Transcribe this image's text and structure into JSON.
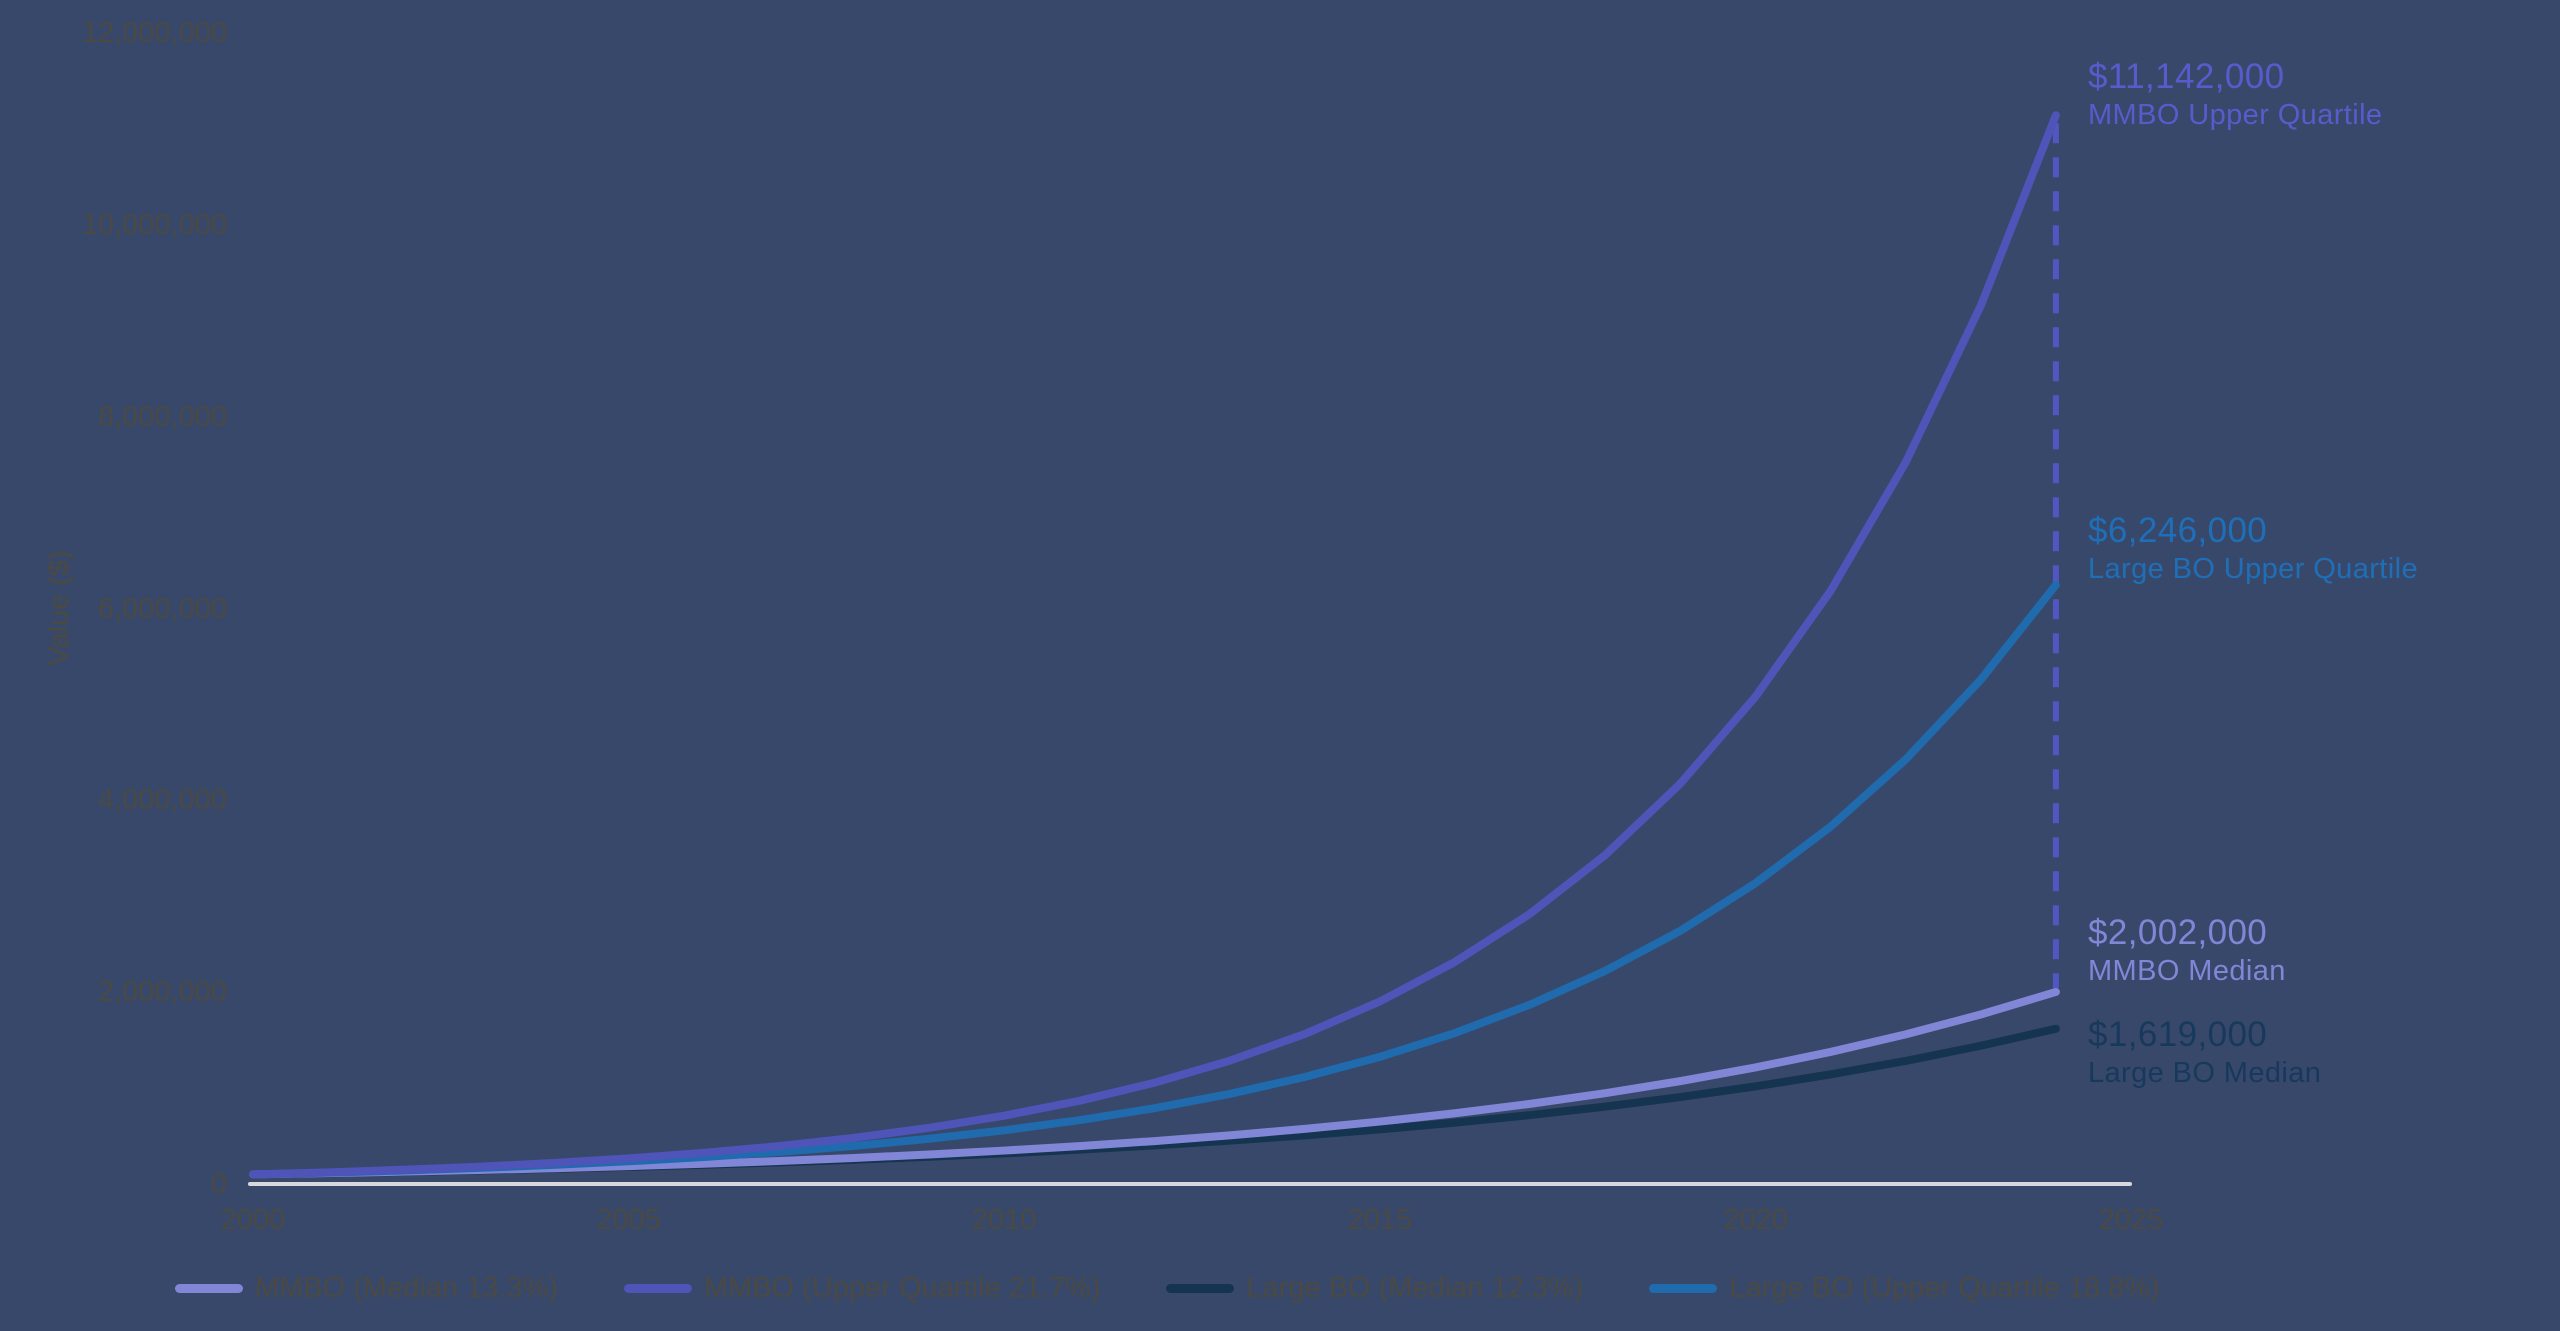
{
  "background": "#38486A",
  "axis_color": "#D8D8DC",
  "text_color": "#4A4A43",
  "chart_data": {
    "type": "line",
    "title": "",
    "xlabel": "",
    "ylabel": "Value ($)",
    "grid": false,
    "legend_position": "bottom",
    "xlim": [
      2000,
      2025
    ],
    "ylim": [
      0,
      12000000
    ],
    "xtick_labels": [
      "2000",
      "2005",
      "2010",
      "2015",
      "2020",
      "2025"
    ],
    "xtick_years": [
      2000,
      2005,
      2010,
      2015,
      2020,
      2025
    ],
    "ytick_labels": [
      "12,000,000",
      "10,000,000",
      "8,000,000",
      "6,000,000",
      "4,000,000",
      "2,000,000",
      "0"
    ],
    "ytick_values": [
      12000000,
      10000000,
      8000000,
      6000000,
      4000000,
      2000000,
      0
    ],
    "x": [
      2000,
      2001,
      2002,
      2003,
      2004,
      2005,
      2006,
      2007,
      2008,
      2009,
      2010,
      2011,
      2012,
      2013,
      2014,
      2015,
      2016,
      2017,
      2018,
      2019,
      2020,
      2021,
      2022,
      2023,
      2024
    ],
    "series": [
      {
        "name": "MMBO (Median 13.3%)",
        "color": "#8286D6",
        "growth_rate_pct": 13.3,
        "values": [
          100000,
          113300,
          128369,
          145442,
          164786,
          186703,
          211535,
          239669,
          271545,
          307660,
          348579,
          394940,
          447467,
          506980,
          574408,
          650804,
          737361,
          835430,
          946542,
          1072432,
          1215066,
          1376670,
          1559767,
          1767216,
          2002256
        ]
      },
      {
        "name": "MMBO (Upper Quartile 21.7%)",
        "color": "#4E54B8",
        "growth_rate_pct": 21.7,
        "values": [
          100000,
          121700,
          148109,
          180249,
          219363,
          266965,
          324896,
          395398,
          481199,
          585619,
          712698,
          867354,
          1055570,
          1284629,
          1563394,
          1902650,
          2315525,
          2817994,
          3429499,
          4173700,
          5079393,
          6181621,
          7523033,
          9155531,
          11142281
        ]
      },
      {
        "name": "Large BO (Median 12.3%)",
        "color": "#143450",
        "growth_rate_pct": 12.3,
        "values": [
          100000,
          112300,
          126113,
          141625,
          159045,
          178608,
          200577,
          225248,
          252954,
          284067,
          319007,
          358245,
          402309,
          451793,
          507364,
          569770,
          639852,
          718554,
          806936,
          906189,
          1017650,
          1142821,
          1283388,
          1441245,
          1618518
        ]
      },
      {
        "name": "Large BO (Upper Quartile 18.8%)",
        "color": "#1F6BAE",
        "growth_rate_pct": 18.8,
        "values": [
          100000,
          118800,
          141134,
          167667,
          199188,
          236635,
          281122,
          333973,
          396760,
          471351,
          559965,
          665238,
          790303,
          938880,
          1115389,
          1325082,
          1574197,
          1870146,
          2221733,
          2639419,
          3135630,
          3725128,
          4425452,
          5257437,
          6245835
        ]
      }
    ],
    "dashed_connector": {
      "year": 2024,
      "top_series": 1,
      "bottom_series": 0,
      "color": "#5157C2",
      "dash": [
        20,
        14
      ]
    }
  },
  "annotations": [
    {
      "value": "$11,142,000",
      "label": "MMBO Upper Quartile",
      "color": "#565CCC"
    },
    {
      "value": "$6,246,000",
      "label": "Large BO Upper Quartile",
      "color": "#1E6FB8"
    },
    {
      "value": "$2,002,000",
      "label": "MMBO Median",
      "color": "#8286D6"
    },
    {
      "value": "$1,619,000",
      "label": "Large BO Median",
      "color": "#17395C"
    }
  ]
}
